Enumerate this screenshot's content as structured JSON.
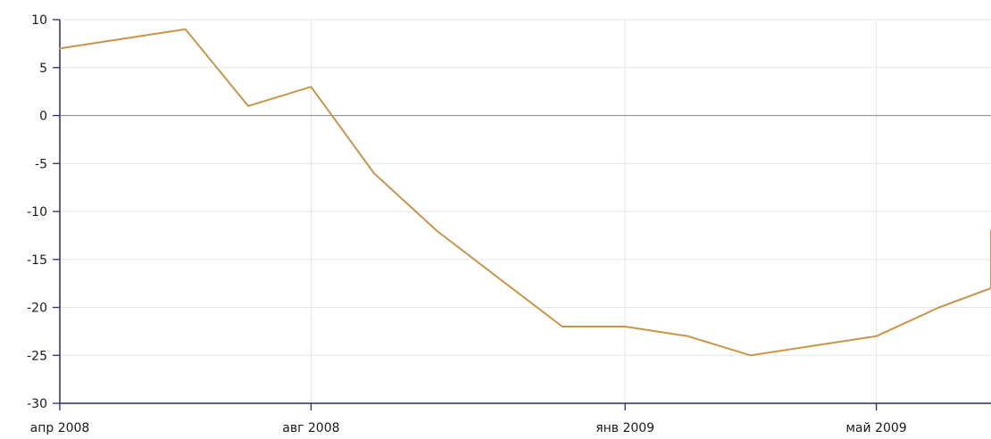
{
  "chart_data": {
    "type": "line",
    "title": "",
    "xlabel": "",
    "ylabel": "",
    "ylim": [
      -30,
      10
    ],
    "yticks": [
      10,
      5,
      0,
      -5,
      -10,
      -15,
      -20,
      -25,
      -30
    ],
    "xticks": [
      {
        "label": "апр 2008",
        "x": "2008-04"
      },
      {
        "label": "авг 2008",
        "x": "2008-08"
      },
      {
        "label": "янв 2009",
        "x": "2009-01"
      },
      {
        "label": "май 2009",
        "x": "2009-05"
      }
    ],
    "x": [
      "2008-04",
      "2008-05",
      "2008-06",
      "2008-07",
      "2008-08",
      "2008-09",
      "2008-10",
      "2008-11",
      "2008-12",
      "2009-01",
      "2009-02",
      "2009-03",
      "2009-04",
      "2009-05",
      "2009-06",
      "2009-07",
      "2009-08"
    ],
    "series": [
      {
        "values": [
          7,
          8,
          9,
          1,
          3,
          -6,
          -12,
          -17,
          -22,
          -22,
          -23,
          -25,
          -24,
          -23,
          -20,
          -18,
          -12
        ]
      }
    ],
    "line_color": "#C8964A",
    "grid": true,
    "zero_line_color": "#999999",
    "axis_color": "#2b2b6b"
  }
}
